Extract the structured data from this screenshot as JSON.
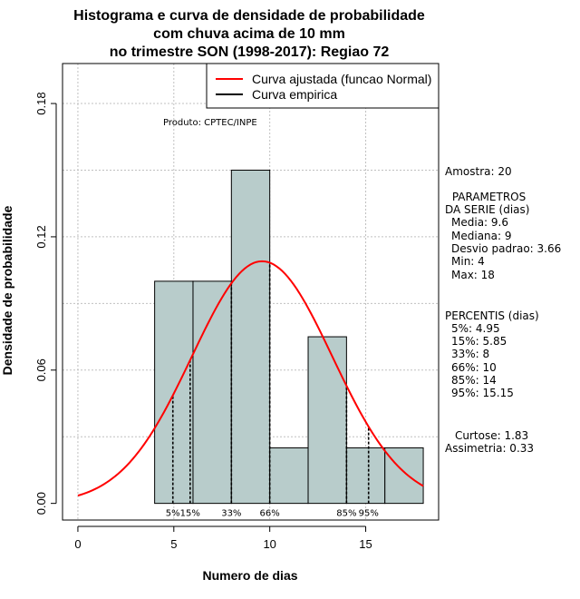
{
  "chart_data": {
    "type": "bar",
    "title_lines": [
      "Histograma e curva de densidade de probabilidade",
      "com chuva acima de 10 mm",
      "no trimestre SON (1998-2017): Regiao 72"
    ],
    "xlabel": "Numero de dias",
    "ylabel": "Densidade de probabilidade",
    "xlim": [
      -0.8,
      18.8
    ],
    "ylim": [
      -0.0075,
      0.198
    ],
    "x_ticks": [
      0,
      5,
      10,
      15
    ],
    "y_ticks": [
      0.0,
      0.06,
      0.12,
      0.18
    ],
    "y_tick_labels": [
      "0.00",
      "0.06",
      "0.12",
      "0.18"
    ],
    "bins": [
      {
        "x0": 4,
        "x1": 6,
        "density": 0.1
      },
      {
        "x0": 6,
        "x1": 8,
        "density": 0.1
      },
      {
        "x0": 8,
        "x1": 10,
        "density": 0.15
      },
      {
        "x0": 10,
        "x1": 12,
        "density": 0.025
      },
      {
        "x0": 12,
        "x1": 14,
        "density": 0.075
      },
      {
        "x0": 14,
        "x1": 16,
        "density": 0.025
      },
      {
        "x0": 16,
        "x1": 18,
        "density": 0.025
      }
    ],
    "bar_color": "#b8cccb",
    "normal_curve": {
      "mean": 9.6,
      "sd": 3.66,
      "color": "#ff0000",
      "x_range": [
        0,
        18
      ]
    },
    "empirical_curve_color": "#000000",
    "grid": true,
    "grid_y": [
      0.03,
      0.06,
      0.09,
      0.12,
      0.15,
      0.18
    ],
    "percentile_lines": [
      {
        "label": "5%",
        "x": 4.95
      },
      {
        "label": "15%",
        "x": 5.85
      },
      {
        "label": "33%",
        "x": 8
      },
      {
        "label": "66%",
        "x": 10
      },
      {
        "label": "85%",
        "x": 14
      },
      {
        "label": "95%",
        "x": 15.15
      }
    ],
    "legend": {
      "placement": "top-right",
      "entries": [
        {
          "label": "Curva ajustada (funcao Normal)",
          "color": "#ff0000"
        },
        {
          "label": "Curva empirica",
          "color": "#000000"
        }
      ]
    },
    "annotation": "Produto: CPTEC/INPE"
  },
  "stats_panel": {
    "sample": "Amostra: 20",
    "params_title": [
      " PARAMETROS",
      "DA SERIE (dias)"
    ],
    "params": [
      "Media: 9.6",
      "Mediana: 9",
      "Desvio padrao: 3.66",
      "Min: 4",
      "Max: 18"
    ],
    "percentiles_title": "PERCENTIS (dias)",
    "percentiles": [
      "5%: 4.95",
      "15%: 5.85",
      "33%: 8",
      "66%: 10",
      "85%: 14",
      "95%: 15.15"
    ],
    "curtose": "Curtose: 1.83",
    "assimetria": "Assimetria: 0.33"
  }
}
